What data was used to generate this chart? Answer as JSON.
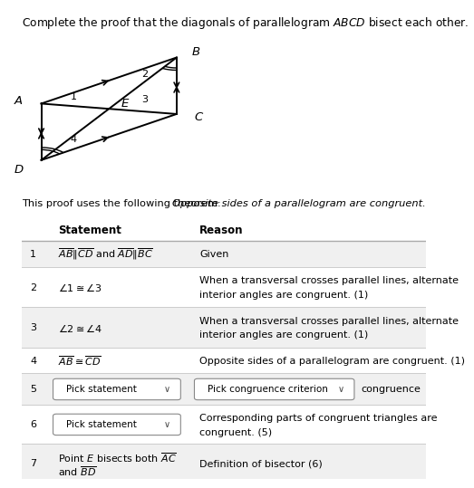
{
  "title_normal": "Complete the proof that the diagonals of parallelogram ",
  "title_italic": "ABCD",
  "title_end": " bisect each other.",
  "theorem_normal": "This proof uses the following theorem: ",
  "theorem_italic": "Opposite sides of a parallelogram are congruent.",
  "bg_color": "#ffffff",
  "rows": [
    {
      "num": "1",
      "statement": "AB_CD_AD_BC",
      "reason": "Given",
      "shaded": true
    },
    {
      "num": "2",
      "statement": "angle1_angle3",
      "reason": "When a transversal crosses parallel lines, alternate\ninterior angles are congruent. (1)",
      "shaded": false
    },
    {
      "num": "3",
      "statement": "angle2_angle4",
      "reason": "When a transversal crosses parallel lines, alternate\ninterior angles are congruent. (1)",
      "shaded": true
    },
    {
      "num": "4",
      "statement": "AB_cong_CD",
      "reason": "Opposite sides of a parallelogram are congruent. (1)",
      "shaded": false
    },
    {
      "num": "5",
      "statement": "Pick statement",
      "reason": "Pick congruence criterion",
      "reason_extra": "congruence",
      "shaded": true,
      "dropdown": true,
      "dropdown_reason": true
    },
    {
      "num": "6",
      "statement": "Pick statement",
      "reason": "Corresponding parts of congruent triangles are\ncongruent. (5)",
      "shaded": false,
      "dropdown": true
    },
    {
      "num": "7",
      "statement": "Point E bisects",
      "reason": "Definition of bisector (6)",
      "shaded": true
    }
  ],
  "para_A": [
    0.1,
    0.62
  ],
  "para_B": [
    0.52,
    0.93
  ],
  "para_C": [
    0.52,
    0.55
  ],
  "para_D": [
    0.1,
    0.24
  ],
  "shaded_color": "#f0f0f0",
  "line_color": "#cccccc",
  "header_line_color": "#aaaaaa"
}
